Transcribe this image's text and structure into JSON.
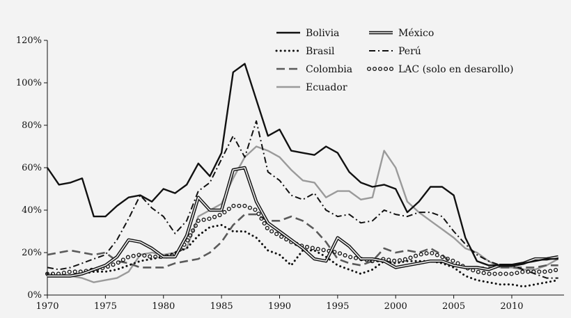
{
  "chart_data": {
    "type": "line",
    "title": "",
    "xlabel": "",
    "ylabel": "",
    "xlim": [
      1970,
      2014.5
    ],
    "ylim": [
      0,
      120
    ],
    "x_ticks": [
      1970,
      1975,
      1980,
      1985,
      1990,
      1995,
      2000,
      2005,
      2010
    ],
    "x_tick_labels": [
      "1970",
      "1975",
      "1980",
      "1985",
      "1990",
      "1995",
      "2000",
      "2005",
      "2010"
    ],
    "y_ticks": [
      0,
      20,
      40,
      60,
      80,
      100,
      120
    ],
    "y_tick_labels": [
      "0%",
      "20%",
      "40%",
      "60%",
      "80%",
      "100%",
      "120%"
    ],
    "grid": false,
    "legend": "top-right",
    "series": [
      {
        "name": "Bolivia",
        "color": "#111111",
        "style": "solid",
        "x": [
          1970,
          1971,
          1972,
          1973,
          1974,
          1975,
          1976,
          1977,
          1978,
          1979,
          1980,
          1981,
          1982,
          1983,
          1984,
          1985,
          1986,
          1987,
          1988,
          1989,
          1990,
          1991,
          1992,
          1993,
          1994,
          1995,
          1996,
          1997,
          1998,
          1999,
          2000,
          2001,
          2002,
          2003,
          2004,
          2005,
          2006,
          2007,
          2008,
          2009,
          2010,
          2011,
          2012,
          2013,
          2014
        ],
        "values": [
          60,
          52,
          53,
          55,
          37,
          37,
          42,
          46,
          47,
          44,
          50,
          48,
          52,
          62,
          56,
          67,
          105,
          109,
          92,
          75,
          78,
          68,
          67,
          66,
          70,
          67,
          58,
          53,
          51,
          52,
          50,
          39,
          44,
          51,
          51,
          47,
          27,
          16,
          14,
          14,
          14,
          15,
          16,
          17,
          17
        ]
      },
      {
        "name": "Brasil",
        "color": "#111111",
        "style": "dotted",
        "x": [
          1970,
          1971,
          1972,
          1973,
          1974,
          1975,
          1976,
          1977,
          1978,
          1979,
          1980,
          1981,
          1982,
          1983,
          1984,
          1985,
          1986,
          1987,
          1988,
          1989,
          1990,
          1991,
          1992,
          1993,
          1994,
          1995,
          1996,
          1997,
          1998,
          1999,
          2000,
          2001,
          2002,
          2003,
          2004,
          2005,
          2006,
          2007,
          2008,
          2009,
          2010,
          2011,
          2012,
          2013,
          2014
        ],
        "values": [
          10,
          9,
          9,
          10,
          11,
          11,
          12,
          14,
          16,
          17,
          18,
          20,
          22,
          28,
          32,
          33,
          30,
          30,
          27,
          21,
          19,
          14,
          21,
          21,
          18,
          14,
          12,
          10,
          12,
          16,
          15,
          16,
          16,
          16,
          15,
          13,
          9,
          7,
          6,
          5,
          5,
          4,
          5,
          6,
          7
        ]
      },
      {
        "name": "Colombia",
        "color": "#5a5a5a",
        "style": "dashed",
        "x": [
          1970,
          1971,
          1972,
          1973,
          1974,
          1975,
          1976,
          1977,
          1978,
          1979,
          1980,
          1981,
          1982,
          1983,
          1984,
          1985,
          1986,
          1987,
          1988,
          1989,
          1990,
          1991,
          1992,
          1993,
          1994,
          1995,
          1996,
          1997,
          1998,
          1999,
          2000,
          2001,
          2002,
          2003,
          2004,
          2005,
          2006,
          2007,
          2008,
          2009,
          2010,
          2011,
          2012,
          2013,
          2014
        ],
        "values": [
          19,
          20,
          21,
          20,
          19,
          20,
          16,
          15,
          13,
          13,
          13,
          15,
          16,
          17,
          20,
          25,
          33,
          38,
          38,
          35,
          35,
          37,
          35,
          31,
          25,
          17,
          15,
          14,
          16,
          22,
          20,
          21,
          20,
          22,
          19,
          14,
          13,
          13,
          13,
          13,
          13,
          13,
          13,
          14,
          14
        ]
      },
      {
        "name": "Ecuador",
        "color": "#9a9a9a",
        "style": "solid",
        "x": [
          1970,
          1971,
          1972,
          1973,
          1974,
          1975,
          1976,
          1977,
          1978,
          1979,
          1980,
          1981,
          1982,
          1983,
          1984,
          1985,
          1986,
          1987,
          1988,
          1989,
          1990,
          1991,
          1992,
          1993,
          1994,
          1995,
          1996,
          1997,
          1998,
          1999,
          2000,
          2001,
          2002,
          2003,
          2004,
          2005,
          2006,
          2007,
          2008,
          2009,
          2010,
          2011,
          2012,
          2013,
          2014
        ],
        "values": [
          9,
          9,
          9,
          8,
          6,
          7,
          8,
          11,
          19,
          20,
          19,
          20,
          22,
          37,
          40,
          43,
          55,
          65,
          70,
          68,
          65,
          59,
          54,
          53,
          46,
          49,
          49,
          45,
          46,
          68,
          60,
          44,
          39,
          35,
          31,
          27,
          22,
          20,
          16,
          13,
          13,
          12,
          12,
          14,
          17
        ]
      },
      {
        "name": "México",
        "color": "#111111",
        "style": "double",
        "x": [
          1970,
          1971,
          1972,
          1973,
          1974,
          1975,
          1976,
          1977,
          1978,
          1979,
          1980,
          1981,
          1982,
          1983,
          1984,
          1985,
          1986,
          1987,
          1988,
          1989,
          1990,
          1991,
          1992,
          1993,
          1994,
          1995,
          1996,
          1997,
          1998,
          1999,
          2000,
          2001,
          2002,
          2003,
          2004,
          2005,
          2006,
          2007,
          2008,
          2009,
          2010,
          2011,
          2012,
          2013,
          2014
        ],
        "values": [
          9,
          9,
          9,
          10,
          12,
          14,
          18,
          26,
          25,
          22,
          18,
          18,
          28,
          46,
          40,
          40,
          59,
          60,
          44,
          34,
          30,
          26,
          22,
          17,
          16,
          27,
          23,
          17,
          17,
          16,
          13,
          14,
          15,
          16,
          16,
          14,
          13,
          13,
          12,
          14,
          14,
          15,
          17,
          17,
          18
        ]
      },
      {
        "name": "Perú",
        "color": "#111111",
        "style": "dashdot",
        "x": [
          1970,
          1971,
          1972,
          1973,
          1974,
          1975,
          1976,
          1977,
          1978,
          1979,
          1980,
          1981,
          1982,
          1983,
          1984,
          1985,
          1986,
          1987,
          1988,
          1989,
          1990,
          1991,
          1992,
          1993,
          1994,
          1995,
          1996,
          1997,
          1998,
          1999,
          2000,
          2001,
          2002,
          2003,
          2004,
          2005,
          2006,
          2007,
          2008,
          2009,
          2010,
          2011,
          2012,
          2013,
          2014
        ],
        "values": [
          13,
          12,
          13,
          15,
          17,
          19,
          26,
          36,
          47,
          41,
          37,
          29,
          35,
          49,
          53,
          64,
          75,
          65,
          82,
          58,
          54,
          47,
          45,
          48,
          40,
          37,
          38,
          34,
          35,
          40,
          38,
          37,
          39,
          39,
          37,
          30,
          24,
          19,
          16,
          14,
          14,
          12,
          10,
          8,
          8
        ]
      },
      {
        "name": "LAC (solo en desarollo)",
        "color": "#111111",
        "style": "circles",
        "x": [
          1970,
          1971,
          1972,
          1973,
          1974,
          1975,
          1976,
          1977,
          1978,
          1979,
          1980,
          1981,
          1982,
          1983,
          1984,
          1985,
          1986,
          1987,
          1988,
          1989,
          1990,
          1991,
          1992,
          1993,
          1994,
          1995,
          1996,
          1997,
          1998,
          1999,
          2000,
          2001,
          2002,
          2003,
          2004,
          2005,
          2006,
          2007,
          2008,
          2009,
          2010,
          2011,
          2012,
          2013,
          2014
        ],
        "values": [
          10,
          10,
          11,
          11,
          12,
          13,
          15,
          18,
          19,
          18,
          18,
          19,
          25,
          35,
          36,
          38,
          42,
          42,
          40,
          31,
          28,
          25,
          23,
          22,
          21,
          20,
          18,
          17,
          16,
          17,
          16,
          17,
          19,
          20,
          18,
          16,
          13,
          11,
          10,
          10,
          10,
          11,
          11,
          11,
          12
        ]
      }
    ]
  }
}
